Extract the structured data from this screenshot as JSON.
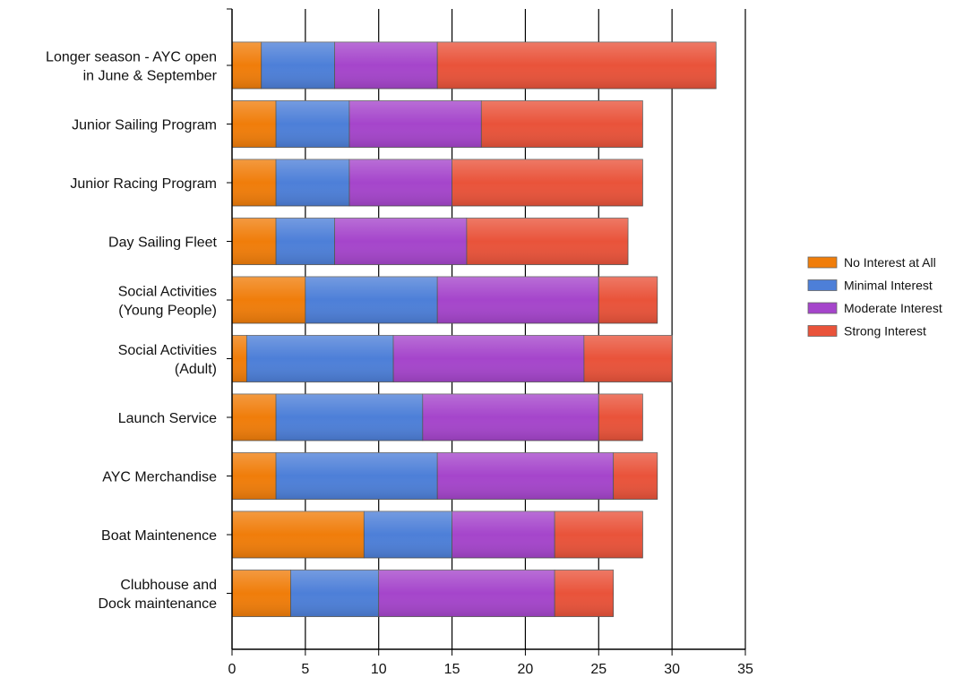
{
  "chart_data": {
    "type": "bar",
    "orientation": "horizontal",
    "stacked": true,
    "categories": [
      [
        "Longer season - AYC open",
        "in June & September"
      ],
      [
        "Junior Sailing Program"
      ],
      [
        "Junior Racing Program"
      ],
      [
        "Day Sailing Fleet"
      ],
      [
        "Social Activities",
        "(Young People)"
      ],
      [
        "Social Activities",
        "(Adult)"
      ],
      [
        "Launch Service"
      ],
      [
        "AYC Merchandise"
      ],
      [
        "Boat Maintenence"
      ],
      [
        "Clubhouse and",
        "Dock maintenance"
      ]
    ],
    "series": [
      {
        "name": "No Interest at All",
        "color": "#f07d0a",
        "values": [
          2,
          3,
          3,
          3,
          5,
          1,
          3,
          3,
          9,
          4
        ]
      },
      {
        "name": "Minimal Interest",
        "color": "#4d7fd8",
        "values": [
          5,
          5,
          5,
          4,
          9,
          10,
          10,
          11,
          6,
          6
        ]
      },
      {
        "name": "Moderate Interest",
        "color": "#a545cb",
        "values": [
          7,
          9,
          7,
          9,
          11,
          13,
          12,
          12,
          7,
          12
        ]
      },
      {
        "name": "Strong Interest",
        "color": "#e9533a",
        "values": [
          19,
          11,
          13,
          11,
          4,
          6,
          3,
          3,
          6,
          4
        ]
      }
    ],
    "xlim": [
      0,
      35
    ],
    "xticks": [
      0,
      5,
      10,
      15,
      20,
      25,
      30,
      35
    ],
    "grid": "vertical",
    "legend": "right"
  }
}
